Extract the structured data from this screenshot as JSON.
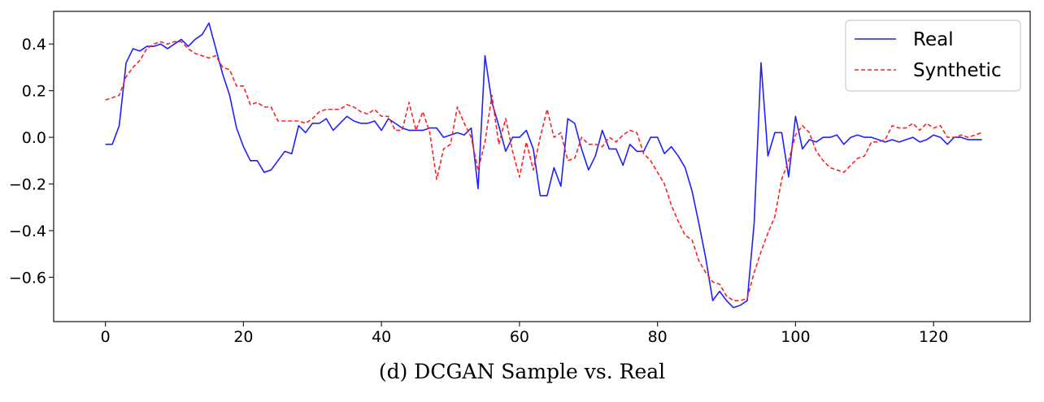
{
  "caption": "(d) DCGAN Sample vs. Real",
  "chart_data": {
    "type": "line",
    "title": "",
    "xlabel": "",
    "ylabel": "",
    "xlim": [
      -7.5,
      134
    ],
    "ylim": [
      -0.79,
      0.54
    ],
    "xticks": [
      0,
      20,
      40,
      60,
      80,
      100,
      120
    ],
    "xtick_labels": [
      "0",
      "20",
      "40",
      "60",
      "80",
      "100",
      "120"
    ],
    "yticks": [
      0.4,
      0.2,
      0.0,
      -0.2,
      -0.4,
      -0.6
    ],
    "ytick_labels": [
      "0.4",
      "0.2",
      "0.0",
      "−0.2",
      "−0.4",
      "−0.6"
    ],
    "grid": false,
    "legend_position": "top-right",
    "x": [
      0,
      1,
      2,
      3,
      4,
      5,
      6,
      7,
      8,
      9,
      10,
      11,
      12,
      13,
      14,
      15,
      16,
      17,
      18,
      19,
      20,
      21,
      22,
      23,
      24,
      25,
      26,
      27,
      28,
      29,
      30,
      31,
      32,
      33,
      34,
      35,
      36,
      37,
      38,
      39,
      40,
      41,
      42,
      43,
      44,
      45,
      46,
      47,
      48,
      49,
      50,
      51,
      52,
      53,
      54,
      55,
      56,
      57,
      58,
      59,
      60,
      61,
      62,
      63,
      64,
      65,
      66,
      67,
      68,
      69,
      70,
      71,
      72,
      73,
      74,
      75,
      76,
      77,
      78,
      79,
      80,
      81,
      82,
      83,
      84,
      85,
      86,
      87,
      88,
      89,
      90,
      91,
      92,
      93,
      94,
      95,
      96,
      97,
      98,
      99,
      100,
      101,
      102,
      103,
      104,
      105,
      106,
      107,
      108,
      109,
      110,
      111,
      112,
      113,
      114,
      115,
      116,
      117,
      118,
      119,
      120,
      121,
      122,
      123,
      124,
      125,
      126,
      127
    ],
    "series": [
      {
        "name": "Real",
        "color": "#1f1fff",
        "dash": "solid",
        "values": [
          -0.03,
          -0.03,
          0.05,
          0.32,
          0.38,
          0.37,
          0.39,
          0.39,
          0.4,
          0.38,
          0.4,
          0.42,
          0.39,
          0.42,
          0.44,
          0.49,
          0.38,
          0.27,
          0.18,
          0.04,
          -0.04,
          -0.1,
          -0.1,
          -0.15,
          -0.14,
          -0.1,
          -0.06,
          -0.07,
          0.05,
          0.02,
          0.06,
          0.06,
          0.08,
          0.03,
          0.06,
          0.09,
          0.07,
          0.06,
          0.06,
          0.07,
          0.03,
          0.08,
          0.06,
          0.04,
          0.03,
          0.03,
          0.03,
          0.04,
          0.04,
          0.0,
          0.01,
          0.02,
          0.01,
          0.04,
          -0.22,
          0.35,
          0.15,
          0.05,
          -0.06,
          0.0,
          0.0,
          0.03,
          -0.05,
          -0.25,
          -0.25,
          -0.13,
          -0.21,
          0.08,
          0.06,
          -0.05,
          -0.14,
          -0.08,
          0.03,
          -0.05,
          -0.05,
          -0.12,
          -0.03,
          -0.06,
          -0.06,
          0.0,
          0.0,
          -0.07,
          -0.04,
          -0.08,
          -0.13,
          -0.23,
          -0.37,
          -0.52,
          -0.7,
          -0.66,
          -0.7,
          -0.73,
          -0.72,
          -0.7,
          -0.37,
          0.32,
          -0.08,
          0.02,
          0.02,
          -0.17,
          0.09,
          -0.05,
          -0.01,
          -0.02,
          0.0,
          0.0,
          0.01,
          -0.03,
          0.0,
          0.01,
          0.0,
          0.0,
          -0.01,
          -0.02,
          -0.01,
          -0.02,
          -0.01,
          0.0,
          -0.02,
          -0.01,
          0.01,
          0.0,
          -0.03,
          0.0,
          0.0,
          -0.01,
          -0.01,
          -0.01
        ]
      },
      {
        "name": "Synthetic",
        "color": "#ff2020",
        "dash": "dashed",
        "values": [
          0.16,
          0.17,
          0.18,
          0.26,
          0.3,
          0.33,
          0.38,
          0.4,
          0.41,
          0.4,
          0.41,
          0.41,
          0.38,
          0.36,
          0.35,
          0.34,
          0.35,
          0.3,
          0.29,
          0.22,
          0.22,
          0.14,
          0.15,
          0.13,
          0.13,
          0.07,
          0.07,
          0.07,
          0.07,
          0.06,
          0.08,
          0.11,
          0.12,
          0.12,
          0.12,
          0.14,
          0.13,
          0.11,
          0.1,
          0.12,
          0.09,
          0.09,
          0.03,
          0.03,
          0.15,
          0.03,
          0.11,
          0.02,
          -0.18,
          -0.05,
          -0.03,
          0.13,
          0.06,
          0.0,
          -0.14,
          -0.02,
          0.18,
          -0.03,
          0.08,
          -0.06,
          -0.17,
          -0.02,
          -0.14,
          0.0,
          0.12,
          0.0,
          0.02,
          -0.1,
          -0.09,
          0.0,
          -0.03,
          -0.03,
          -0.04,
          0.0,
          -0.02,
          0.01,
          0.03,
          0.02,
          -0.07,
          -0.1,
          -0.15,
          -0.2,
          -0.29,
          -0.36,
          -0.42,
          -0.44,
          -0.53,
          -0.58,
          -0.62,
          -0.63,
          -0.68,
          -0.7,
          -0.7,
          -0.69,
          -0.58,
          -0.49,
          -0.41,
          -0.34,
          -0.18,
          -0.1,
          0.01,
          0.05,
          0.02,
          -0.06,
          -0.1,
          -0.13,
          -0.14,
          -0.15,
          -0.12,
          -0.09,
          -0.08,
          -0.02,
          -0.02,
          -0.01,
          0.05,
          0.04,
          0.04,
          0.06,
          0.03,
          0.06,
          0.04,
          0.05,
          0.0,
          0.0,
          0.01,
          0.0,
          0.01,
          0.02
        ]
      }
    ]
  }
}
